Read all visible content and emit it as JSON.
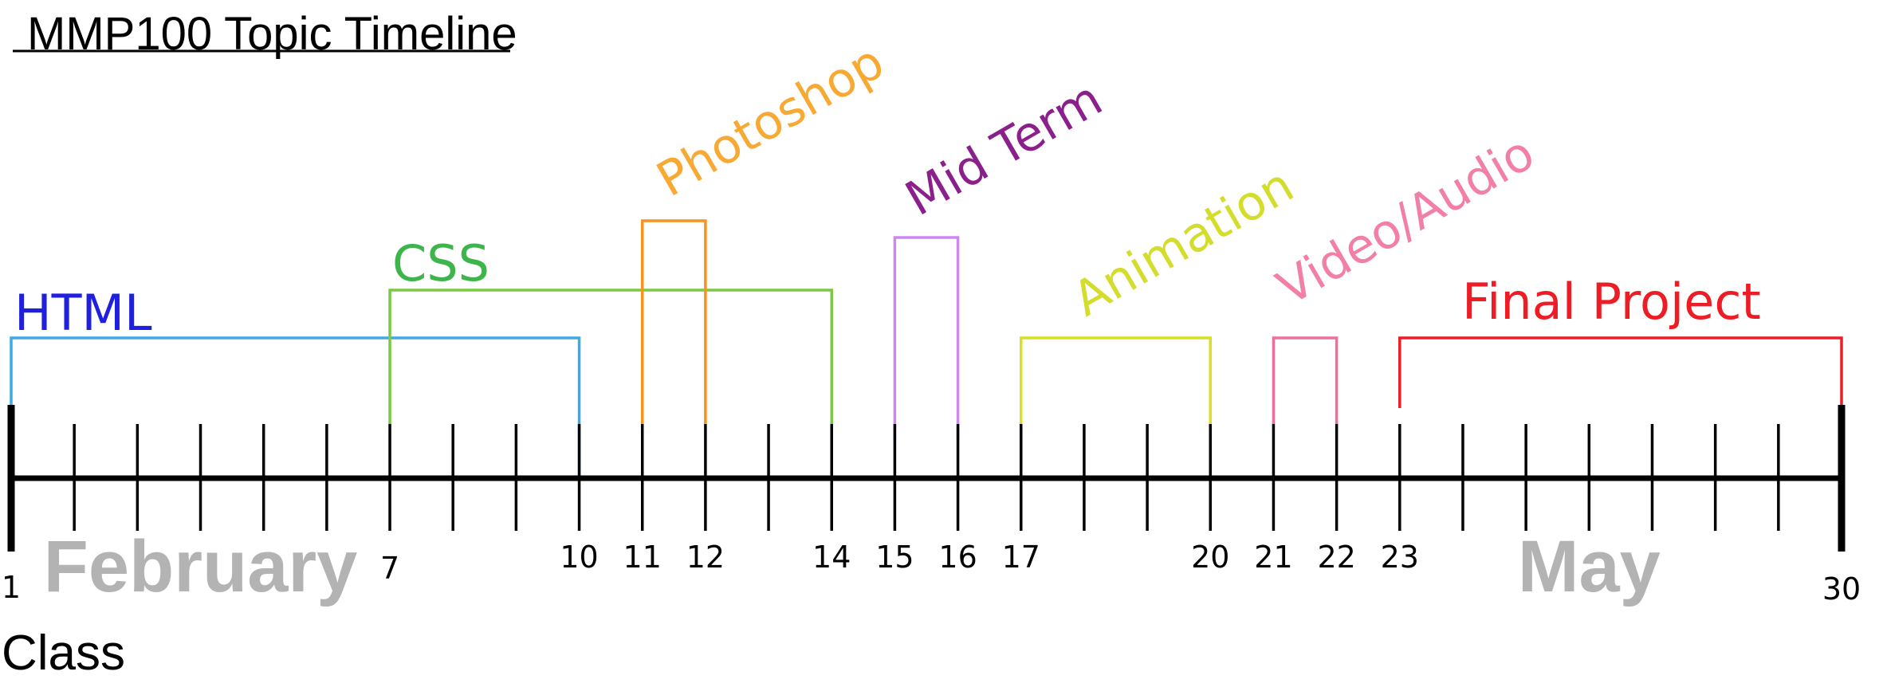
{
  "title": "MMP100 Topic Timeline",
  "axis_label": "Class",
  "months": [
    {
      "label": "February",
      "class_position": 4
    },
    {
      "label": "May",
      "class_position": 26
    }
  ],
  "classes": {
    "start": 1,
    "end": 30
  },
  "tick_labels": [
    1,
    7,
    10,
    11,
    12,
    14,
    15,
    16,
    17,
    20,
    21,
    22,
    23,
    30
  ],
  "topics": [
    {
      "label": "HTML",
      "start": 1,
      "end": 10,
      "color": "#1f1fe0",
      "bracket_color": "#3fa9e6",
      "rotated": false
    },
    {
      "label": "CSS",
      "start": 7,
      "end": 14,
      "color": "#3db54a",
      "bracket_color": "#7ac943",
      "rotated": false
    },
    {
      "label": "Photoshop",
      "start": 11,
      "end": 12,
      "color": "#f7a934",
      "bracket_color": "#f7931e",
      "rotated": true
    },
    {
      "label": "Mid Term",
      "start": 15,
      "end": 16,
      "color": "#8b1f8b",
      "bracket_color": "#cc88ee",
      "rotated": true
    },
    {
      "label": "Animation",
      "start": 17,
      "end": 20,
      "color": "#d4dc2c",
      "bracket_color": "#d9e021",
      "rotated": true
    },
    {
      "label": "Video/Audio",
      "start": 21,
      "end": 22,
      "color": "#f27fa8",
      "bracket_color": "#f06e9a",
      "rotated": true
    },
    {
      "label": "Final Project",
      "start": 23,
      "end": 30,
      "color": "#ee1c25",
      "bracket_color": "#ee1c25",
      "rotated": false
    }
  ],
  "colors": {
    "axis": "#000000",
    "month": "#b3b3b3"
  }
}
